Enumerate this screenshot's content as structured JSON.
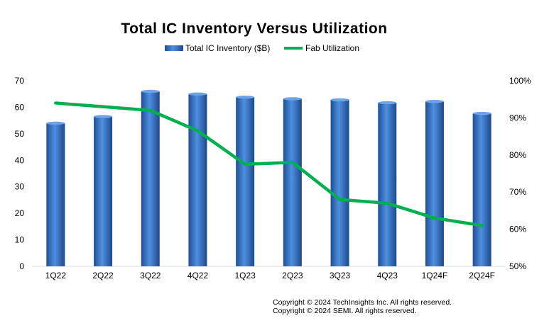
{
  "chart_data": {
    "type": "bar",
    "title": "Total IC Inventory Versus Utilization",
    "categories": [
      "1Q22",
      "2Q22",
      "3Q22",
      "4Q22",
      "1Q23",
      "2Q23",
      "3Q23",
      "4Q23",
      "1Q24F",
      "2Q24F"
    ],
    "series": [
      {
        "name": "Total IC Inventory ($B)",
        "type": "bar",
        "axis": "left",
        "color": "#3a76c9",
        "values": [
          54,
          56.5,
          66,
          65,
          63.8,
          63.2,
          62.8,
          61.7,
          62.2,
          57.7
        ]
      },
      {
        "name": "Fab Utilization",
        "type": "line",
        "axis": "right",
        "color": "#00b050",
        "values": [
          94,
          93,
          92,
          86.5,
          77.5,
          78,
          68,
          67,
          63,
          61
        ]
      }
    ],
    "y_left": {
      "min": 0,
      "max": 70,
      "ticks": [
        "0",
        "10",
        "20",
        "30",
        "40",
        "50",
        "60",
        "70"
      ]
    },
    "y_right": {
      "min": 50,
      "max": 100,
      "ticks": [
        "50%",
        "60%",
        "70%",
        "80%",
        "90%",
        "100%"
      ]
    },
    "legend_position": "top-center",
    "grid": false
  },
  "copyright": [
    "Copyright © 2024 TechInsights Inc.  All rights reserved.",
    "Copyright © 2024 SEMI.  All rights reserved."
  ]
}
